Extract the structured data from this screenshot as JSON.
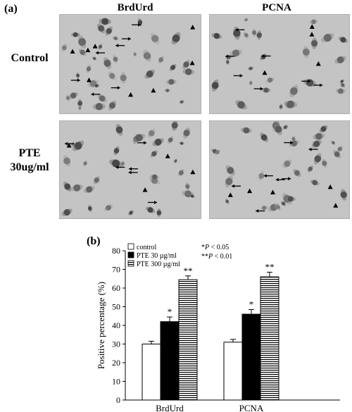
{
  "panel_a": {
    "label": "(a)",
    "column_headers": [
      "BrdUrd",
      "PCNA"
    ],
    "row_labels": [
      {
        "line1": "Control",
        "line2": ""
      },
      {
        "line1": "PTE",
        "line2": "30ug/ml"
      }
    ],
    "micrographs": [
      {
        "name": "control-brdurd",
        "cells": 38,
        "arrows": 7,
        "arrowheads": 8
      },
      {
        "name": "control-pcna",
        "cells": 30,
        "arrows": 7,
        "arrowheads": 4
      },
      {
        "name": "pte-brdurd",
        "cells": 34,
        "arrows": 6,
        "arrowheads": 4
      },
      {
        "name": "pte-pcna",
        "cells": 34,
        "arrows": 7,
        "arrowheads": 5
      }
    ]
  },
  "panel_b": {
    "label": "(b)",
    "significance_notes": [
      {
        "stars": "*",
        "text": "P < 0.05"
      },
      {
        "stars": "**",
        "text": "P < 0.01"
      }
    ]
  },
  "chart_data": {
    "type": "bar",
    "title": "",
    "xlabel": "",
    "ylabel": "Positive percentage (%)",
    "ylim": [
      0,
      80
    ],
    "yticks": [
      0,
      10,
      20,
      30,
      40,
      50,
      60,
      70,
      80
    ],
    "categories": [
      "BrdUrd",
      "PCNA"
    ],
    "series": [
      {
        "name": "control",
        "fill": "white",
        "values": [
          30,
          31
        ],
        "errors": [
          1.5,
          1.5
        ],
        "annotations": [
          "",
          ""
        ]
      },
      {
        "name": "PTE 30 µg/ml",
        "fill": "black",
        "values": [
          42,
          46
        ],
        "errors": [
          2.5,
          2.5
        ],
        "annotations": [
          "*",
          "*"
        ]
      },
      {
        "name": "PTE 300 µg/ml",
        "fill": "horizontal-stripes",
        "values": [
          64.5,
          66
        ],
        "errors": [
          2,
          2.5
        ],
        "annotations": [
          "**",
          "**"
        ]
      }
    ],
    "legend_position": "top-left",
    "grid": false
  }
}
